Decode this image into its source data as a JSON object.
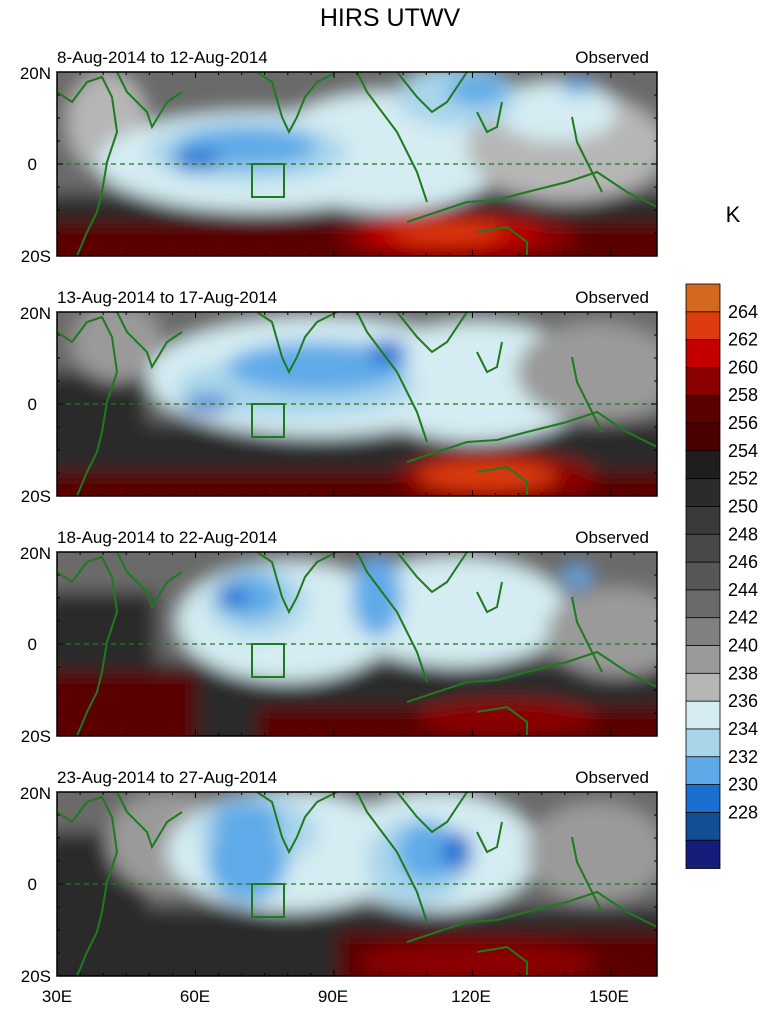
{
  "title": "HIRS UTWV",
  "unit_label": "K",
  "panels": [
    {
      "period": "8-Aug-2014 to 12-Aug-2014",
      "tag": "Observed"
    },
    {
      "period": "13-Aug-2014 to 17-Aug-2014",
      "tag": "Observed"
    },
    {
      "period": "18-Aug-2014 to 22-Aug-2014",
      "tag": "Observed"
    },
    {
      "period": "23-Aug-2014 to 27-Aug-2014",
      "tag": "Observed"
    }
  ],
  "lat_ticks": [
    "20N",
    "0",
    "20S"
  ],
  "lon_ticks": [
    "30E",
    "60E",
    "90E",
    "120E",
    "150E"
  ],
  "colorbar": {
    "levels": [
      "264",
      "262",
      "260",
      "258",
      "256",
      "254",
      "252",
      "250",
      "248",
      "246",
      "244",
      "242",
      "240",
      "238",
      "236",
      "234",
      "232",
      "230",
      "228"
    ],
    "colors": [
      "#d2691e",
      "#dd3b10",
      "#c40000",
      "#8b0000",
      "#5a0000",
      "#4a0000",
      "#1e1e1e",
      "#2b2b2b",
      "#3a3a3a",
      "#484848",
      "#575757",
      "#6a6a6a",
      "#808080",
      "#9a9a9a",
      "#b6b6b6",
      "#d4ecf2",
      "#a9d5ea",
      "#5eaae8",
      "#1b6fd0",
      "#124e92",
      "#161c7a"
    ]
  },
  "map_colors": {
    "coast": "#1f7a1f",
    "equator": "#1f7a1f",
    "box": "#1f7a1f"
  }
}
